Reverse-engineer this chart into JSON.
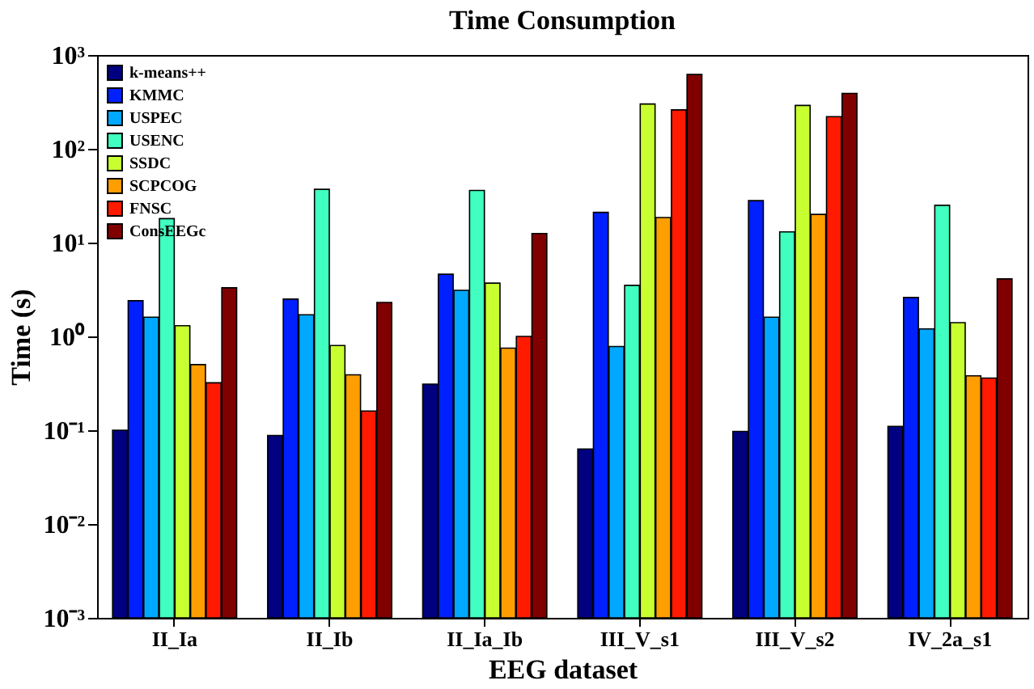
{
  "chart_data": {
    "type": "bar",
    "title": "Time Consumption",
    "xlabel": "EEG dataset",
    "ylabel": "Time (s)",
    "categories": [
      "II_Ia",
      "II_Ib",
      "II_Ia_Ib",
      "III_V_s1",
      "III_V_s2",
      "IV_2a_s1"
    ],
    "series": [
      {
        "name": "k-means++",
        "color": "#000080",
        "values": [
          0.1,
          0.088,
          0.31,
          0.063,
          0.097,
          0.11
        ]
      },
      {
        "name": "KMMC",
        "color": "#0020ff",
        "values": [
          2.4,
          2.5,
          4.6,
          21,
          28,
          2.6
        ]
      },
      {
        "name": "USPEC",
        "color": "#00a8ff",
        "values": [
          1.6,
          1.7,
          3.1,
          0.78,
          1.6,
          1.2
        ]
      },
      {
        "name": "USENC",
        "color": "#40ffc0",
        "values": [
          18,
          37,
          36,
          3.5,
          13,
          25
        ]
      },
      {
        "name": "SSDC",
        "color": "#c8ff30",
        "values": [
          1.3,
          0.8,
          3.7,
          300,
          290,
          1.4
        ]
      },
      {
        "name": "SCPCOG",
        "color": "#ff9e00",
        "values": [
          0.5,
          0.39,
          0.75,
          18.5,
          20,
          0.38
        ]
      },
      {
        "name": "FNSC",
        "color": "#ff1a00",
        "values": [
          0.32,
          0.16,
          1.0,
          260,
          220,
          0.36
        ]
      },
      {
        "name": "ConsEEGc",
        "color": "#800000",
        "values": [
          3.3,
          2.3,
          12.5,
          620,
          390,
          4.1
        ]
      }
    ],
    "log": true,
    "ylim": [
      0.001,
      1000
    ],
    "yticks": [
      {
        "value": 0.001,
        "label": "10⁻³"
      },
      {
        "value": 0.01,
        "label": "10⁻²"
      },
      {
        "value": 0.1,
        "label": "10⁻¹"
      },
      {
        "value": 1,
        "label": "10⁰"
      },
      {
        "value": 10,
        "label": "10¹"
      },
      {
        "value": 100,
        "label": "10²"
      },
      {
        "value": 1000,
        "label": "10³"
      }
    ],
    "legend": "top left",
    "grid": false
  }
}
